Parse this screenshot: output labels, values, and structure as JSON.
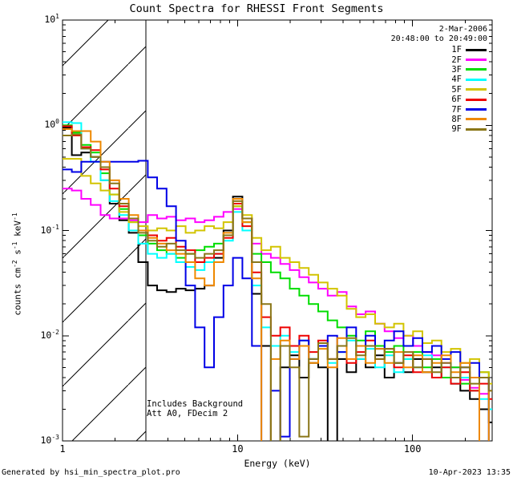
{
  "header": {
    "date": "2-Mar-2006",
    "time_range": "20:48:00 to 20:49:00"
  },
  "annotation": {
    "line1": "Includes Background",
    "line2": "Att A0, FDecim 2"
  },
  "footer": {
    "left": "Generated by hsi_min_spectra_plot.pro",
    "right": "10-Apr-2023 13:35"
  },
  "chart_data": {
    "type": "line",
    "title": "Count Spectra for RHESSI Front Segments",
    "xlabel": "Energy (keV)",
    "ylabel": "counts cm^-2 s^-1 keV^-1",
    "ylabel_segments": [
      {
        "t": "counts cm"
      },
      {
        "t": "-2",
        "sup": true
      },
      {
        "t": " s"
      },
      {
        "t": "-1",
        "sup": true
      },
      {
        "t": " keV"
      },
      {
        "t": "-1",
        "sup": true
      }
    ],
    "xscale": "log",
    "yscale": "log",
    "xlim": [
      1,
      285
    ],
    "ylim": [
      0.001,
      10
    ],
    "grid": false,
    "legend_position": "top-right",
    "xticks": [
      {
        "value": 1,
        "label": "1"
      },
      {
        "value": 10,
        "label": "10"
      },
      {
        "value": 100,
        "label": "100"
      }
    ],
    "yticks": [
      {
        "value": 10,
        "base": "10",
        "exp": "1"
      },
      {
        "value": 1,
        "base": "10",
        "exp": "0"
      },
      {
        "value": 0.1,
        "base": "10",
        "exp": "-1"
      },
      {
        "value": 0.01,
        "base": "10",
        "exp": "-2"
      },
      {
        "value": 0.001,
        "base": "10",
        "exp": "-3"
      }
    ],
    "hatched_region_keV": [
      1,
      3
    ],
    "step_mode": "post",
    "bin_edges_keV": [
      1.0,
      1.13,
      1.28,
      1.45,
      1.65,
      1.86,
      2.11,
      2.39,
      2.71,
      3.07,
      3.47,
      3.93,
      4.45,
      5.05,
      5.72,
      6.48,
      7.34,
      8.31,
      9.41,
      10.66,
      12.08,
      13.68,
      15.5,
      17.56,
      19.89,
      22.53,
      25.52,
      28.91,
      32.75,
      37.1,
      42.02,
      47.61,
      53.93,
      61.09,
      69.2,
      78.39,
      88.8,
      100.6,
      113.9,
      129.1,
      146.2,
      165.6,
      187.6,
      212.5,
      240.7,
      272.7
    ],
    "series": [
      {
        "name": "1F",
        "color": "#000000",
        "values": [
          0.95,
          0.52,
          0.55,
          0.5,
          0.3,
          0.18,
          0.125,
          0.095,
          0.05,
          0.03,
          0.027,
          0.026,
          0.028,
          0.027,
          0.028,
          0.03,
          0.055,
          0.1,
          0.21,
          0.13,
          0.025,
          0.008,
          0.0009,
          0.005,
          0.0065,
          0.004,
          0.0055,
          0.005,
          0.0009,
          0.006,
          0.0045,
          0.006,
          0.005,
          0.0065,
          0.004,
          0.0055,
          0.0045,
          0.006,
          0.0045,
          0.005,
          0.004,
          0.0035,
          0.003,
          0.0025,
          0.002,
          0.0015
        ]
      },
      {
        "name": "2F",
        "color": "#ff00ff",
        "values": [
          0.25,
          0.24,
          0.2,
          0.175,
          0.14,
          0.13,
          0.13,
          0.125,
          0.12,
          0.14,
          0.13,
          0.135,
          0.125,
          0.13,
          0.12,
          0.125,
          0.135,
          0.15,
          0.16,
          0.13,
          0.075,
          0.06,
          0.055,
          0.048,
          0.042,
          0.036,
          0.032,
          0.028,
          0.024,
          0.026,
          0.019,
          0.016,
          0.017,
          0.013,
          0.011,
          0.0095,
          0.01,
          0.008,
          0.007,
          0.0065,
          0.0055,
          0.005,
          0.0038,
          0.0032,
          0.0028,
          0.002
        ]
      },
      {
        "name": "3F",
        "color": "#00dd00",
        "values": [
          1.0,
          0.85,
          0.65,
          0.55,
          0.35,
          0.22,
          0.16,
          0.12,
          0.09,
          0.075,
          0.065,
          0.06,
          0.055,
          0.06,
          0.065,
          0.07,
          0.075,
          0.09,
          0.17,
          0.12,
          0.06,
          0.05,
          0.04,
          0.035,
          0.028,
          0.024,
          0.02,
          0.017,
          0.014,
          0.012,
          0.01,
          0.009,
          0.011,
          0.008,
          0.007,
          0.008,
          0.006,
          0.007,
          0.005,
          0.006,
          0.004,
          0.005,
          0.0035,
          0.003,
          0.0045,
          0.002
        ]
      },
      {
        "name": "4F",
        "color": "#00ffff",
        "values": [
          1.07,
          1.05,
          0.6,
          0.45,
          0.3,
          0.19,
          0.14,
          0.1,
          0.075,
          0.06,
          0.055,
          0.06,
          0.05,
          0.045,
          0.042,
          0.05,
          0.06,
          0.08,
          0.15,
          0.1,
          0.03,
          0.012,
          0.008,
          0.01,
          0.007,
          0.009,
          0.006,
          0.008,
          0.0055,
          0.007,
          0.009,
          0.006,
          0.0075,
          0.005,
          0.0065,
          0.0045,
          0.006,
          0.005,
          0.0065,
          0.004,
          0.005,
          0.0035,
          0.004,
          0.003,
          0.0025,
          0.002
        ]
      },
      {
        "name": "5F",
        "color": "#d2c400",
        "values": [
          0.48,
          0.48,
          0.33,
          0.28,
          0.24,
          0.22,
          0.15,
          0.12,
          0.11,
          0.1,
          0.105,
          0.1,
          0.11,
          0.095,
          0.1,
          0.11,
          0.105,
          0.12,
          0.17,
          0.14,
          0.085,
          0.065,
          0.07,
          0.055,
          0.05,
          0.044,
          0.038,
          0.032,
          0.028,
          0.024,
          0.018,
          0.015,
          0.016,
          0.013,
          0.012,
          0.013,
          0.01,
          0.011,
          0.0085,
          0.009,
          0.007,
          0.0075,
          0.0055,
          0.006,
          0.0045,
          0.0035
        ]
      },
      {
        "name": "6F",
        "color": "#ee0000",
        "values": [
          0.98,
          0.8,
          0.62,
          0.58,
          0.38,
          0.25,
          0.17,
          0.13,
          0.1,
          0.09,
          0.08,
          0.085,
          0.07,
          0.065,
          0.05,
          0.055,
          0.06,
          0.085,
          0.18,
          0.11,
          0.04,
          0.015,
          0.01,
          0.012,
          0.008,
          0.01,
          0.007,
          0.009,
          0.006,
          0.008,
          0.0055,
          0.007,
          0.009,
          0.006,
          0.0075,
          0.005,
          0.0065,
          0.0045,
          0.006,
          0.004,
          0.005,
          0.0035,
          0.0045,
          0.003,
          0.0035,
          0.0025
        ]
      },
      {
        "name": "7F",
        "color": "#0000e6",
        "values": [
          0.38,
          0.36,
          0.45,
          0.45,
          0.45,
          0.45,
          0.45,
          0.45,
          0.46,
          0.32,
          0.25,
          0.17,
          0.08,
          0.03,
          0.012,
          0.005,
          0.015,
          0.03,
          0.055,
          0.035,
          0.008,
          0.0009,
          0.003,
          0.0011,
          0.006,
          0.009,
          0.006,
          0.008,
          0.01,
          0.007,
          0.012,
          0.008,
          0.01,
          0.0075,
          0.009,
          0.011,
          0.008,
          0.0095,
          0.007,
          0.008,
          0.006,
          0.007,
          0.005,
          0.0055,
          0.004,
          0.0009
        ]
      },
      {
        "name": "8F",
        "color": "#ee8800",
        "values": [
          0.92,
          0.88,
          0.88,
          0.7,
          0.45,
          0.3,
          0.2,
          0.14,
          0.1,
          0.085,
          0.075,
          0.065,
          0.06,
          0.05,
          0.035,
          0.03,
          0.05,
          0.095,
          0.2,
          0.12,
          0.035,
          0.0009,
          0.006,
          0.009,
          0.006,
          0.008,
          0.0055,
          0.0075,
          0.005,
          0.0095,
          0.006,
          0.008,
          0.0055,
          0.0075,
          0.0055,
          0.007,
          0.005,
          0.0065,
          0.0045,
          0.0055,
          0.0065,
          0.0045,
          0.0055,
          0.004,
          0.0009,
          0.003
        ]
      },
      {
        "name": "9F",
        "color": "#8a7618",
        "values": [
          0.8,
          0.82,
          0.6,
          0.5,
          0.4,
          0.28,
          0.18,
          0.13,
          0.095,
          0.08,
          0.07,
          0.075,
          0.065,
          0.06,
          0.055,
          0.06,
          0.065,
          0.09,
          0.19,
          0.13,
          0.05,
          0.02,
          0.0009,
          0.008,
          0.005,
          0.0011,
          0.006,
          0.0085,
          0.006,
          0.008,
          0.0095,
          0.0065,
          0.008,
          0.006,
          0.0075,
          0.0055,
          0.007,
          0.005,
          0.006,
          0.0045,
          0.0055,
          0.004,
          0.005,
          0.0035,
          0.004,
          0.003
        ]
      }
    ]
  }
}
